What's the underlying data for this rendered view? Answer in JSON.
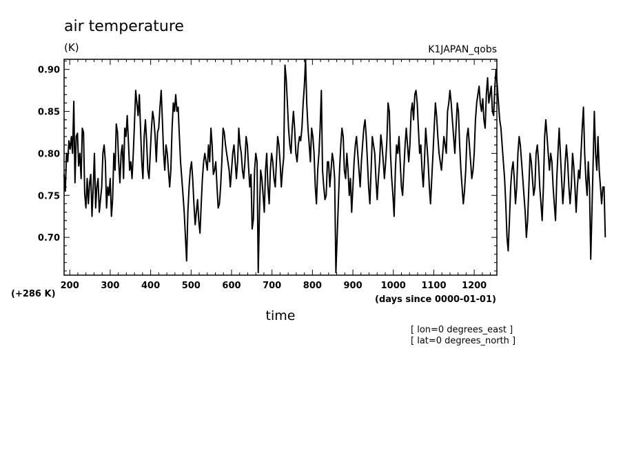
{
  "chart_data": {
    "type": "line",
    "title": "air temperature",
    "units_label": "(K)",
    "dataset_label": "K1JAPAN_qobs",
    "offset_label": "(+286 K)",
    "xlabel": "time",
    "x_units_label": "(days since 0000-01-01)",
    "annotations": [
      "[ lon=0 degrees_east ]",
      "[ lat=0 degrees_north ]"
    ],
    "xlim": [
      186,
      1256
    ],
    "ylim": [
      0.655,
      0.912
    ],
    "x_ticks": [
      200,
      300,
      400,
      500,
      600,
      700,
      800,
      900,
      1000,
      1100,
      1200
    ],
    "x_tick_labels": [
      "200",
      "300",
      "400",
      "500",
      "600",
      "700",
      "800",
      "900",
      "1000",
      "1100",
      "1200"
    ],
    "y_ticks": [
      0.7,
      0.75,
      0.8,
      0.85,
      0.9
    ],
    "y_tick_labels": [
      "0.70",
      "0.75",
      "0.80",
      "0.85",
      "0.90"
    ],
    "grid": false,
    "line_color": "#000000",
    "x_step": 3,
    "values": [
      0.775,
      0.755,
      0.8,
      0.79,
      0.815,
      0.805,
      0.82,
      0.8,
      0.862,
      0.765,
      0.82,
      0.824,
      0.785,
      0.8,
      0.77,
      0.83,
      0.825,
      0.752,
      0.735,
      0.77,
      0.74,
      0.765,
      0.775,
      0.725,
      0.76,
      0.8,
      0.735,
      0.76,
      0.77,
      0.73,
      0.745,
      0.76,
      0.8,
      0.81,
      0.79,
      0.735,
      0.76,
      0.75,
      0.77,
      0.725,
      0.745,
      0.8,
      0.78,
      0.835,
      0.825,
      0.79,
      0.765,
      0.8,
      0.81,
      0.77,
      0.83,
      0.82,
      0.845,
      0.815,
      0.78,
      0.79,
      0.77,
      0.8,
      0.835,
      0.875,
      0.86,
      0.845,
      0.87,
      0.83,
      0.79,
      0.77,
      0.82,
      0.84,
      0.815,
      0.78,
      0.77,
      0.8,
      0.83,
      0.85,
      0.84,
      0.82,
      0.79,
      0.825,
      0.83,
      0.855,
      0.875,
      0.84,
      0.8,
      0.78,
      0.81,
      0.8,
      0.78,
      0.76,
      0.78,
      0.83,
      0.86,
      0.85,
      0.87,
      0.85,
      0.855,
      0.82,
      0.79,
      0.77,
      0.75,
      0.73,
      0.7,
      0.672,
      0.73,
      0.76,
      0.78,
      0.79,
      0.77,
      0.74,
      0.715,
      0.73,
      0.745,
      0.72,
      0.705,
      0.74,
      0.77,
      0.79,
      0.8,
      0.79,
      0.78,
      0.81,
      0.79,
      0.83,
      0.81,
      0.775,
      0.78,
      0.79,
      0.76,
      0.735,
      0.74,
      0.76,
      0.79,
      0.83,
      0.825,
      0.81,
      0.8,
      0.79,
      0.78,
      0.76,
      0.78,
      0.8,
      0.81,
      0.79,
      0.77,
      0.79,
      0.83,
      0.81,
      0.8,
      0.78,
      0.77,
      0.79,
      0.82,
      0.81,
      0.785,
      0.76,
      0.775,
      0.71,
      0.722,
      0.78,
      0.8,
      0.79,
      0.658,
      0.73,
      0.78,
      0.77,
      0.75,
      0.73,
      0.78,
      0.8,
      0.76,
      0.74,
      0.78,
      0.8,
      0.79,
      0.77,
      0.76,
      0.79,
      0.82,
      0.81,
      0.79,
      0.76,
      0.78,
      0.795,
      0.905,
      0.89,
      0.86,
      0.83,
      0.81,
      0.8,
      0.83,
      0.85,
      0.83,
      0.8,
      0.79,
      0.81,
      0.82,
      0.815,
      0.83,
      0.86,
      0.88,
      0.912,
      0.86,
      0.83,
      0.81,
      0.79,
      0.83,
      0.82,
      0.8,
      0.76,
      0.74,
      0.78,
      0.8,
      0.83,
      0.875,
      0.78,
      0.76,
      0.745,
      0.75,
      0.79,
      0.79,
      0.76,
      0.78,
      0.8,
      0.79,
      0.77,
      0.658,
      0.7,
      0.74,
      0.78,
      0.81,
      0.83,
      0.82,
      0.78,
      0.77,
      0.8,
      0.78,
      0.75,
      0.77,
      0.73,
      0.76,
      0.79,
      0.81,
      0.82,
      0.8,
      0.78,
      0.76,
      0.79,
      0.81,
      0.83,
      0.84,
      0.82,
      0.79,
      0.76,
      0.74,
      0.78,
      0.82,
      0.81,
      0.8,
      0.77,
      0.745,
      0.77,
      0.79,
      0.822,
      0.81,
      0.79,
      0.77,
      0.79,
      0.815,
      0.86,
      0.85,
      0.8,
      0.77,
      0.75,
      0.725,
      0.78,
      0.81,
      0.8,
      0.82,
      0.79,
      0.76,
      0.75,
      0.78,
      0.81,
      0.83,
      0.81,
      0.79,
      0.81,
      0.85,
      0.86,
      0.84,
      0.87,
      0.875,
      0.86,
      0.83,
      0.8,
      0.81,
      0.78,
      0.76,
      0.79,
      0.83,
      0.81,
      0.79,
      0.76,
      0.74,
      0.77,
      0.8,
      0.83,
      0.86,
      0.845,
      0.82,
      0.8,
      0.79,
      0.78,
      0.8,
      0.82,
      0.81,
      0.8,
      0.85,
      0.86,
      0.875,
      0.86,
      0.84,
      0.82,
      0.8,
      0.83,
      0.86,
      0.85,
      0.81,
      0.78,
      0.76,
      0.74,
      0.755,
      0.78,
      0.82,
      0.83,
      0.81,
      0.79,
      0.77,
      0.78,
      0.8,
      0.84,
      0.86,
      0.87,
      0.88,
      0.86,
      0.85,
      0.865,
      0.84,
      0.83,
      0.87,
      0.89,
      0.86,
      0.87,
      0.88,
      0.85,
      0.845,
      0.88,
      0.9,
      0.88,
      0.86,
      0.84,
      0.83,
      0.81,
      0.79,
      0.77,
      0.74,
      0.7,
      0.684,
      0.72,
      0.76,
      0.78,
      0.79,
      0.77,
      0.74,
      0.76,
      0.8,
      0.82,
      0.81,
      0.79,
      0.77,
      0.75,
      0.73,
      0.7,
      0.72,
      0.76,
      0.8,
      0.79,
      0.77,
      0.75,
      0.76,
      0.8,
      0.81,
      0.79,
      0.76,
      0.74,
      0.72,
      0.76,
      0.82,
      0.84,
      0.82,
      0.8,
      0.78,
      0.8,
      0.79,
      0.76,
      0.74,
      0.72,
      0.77,
      0.8,
      0.83,
      0.8,
      0.77,
      0.74,
      0.76,
      0.79,
      0.81,
      0.79,
      0.76,
      0.74,
      0.76,
      0.8,
      0.785,
      0.76,
      0.73,
      0.76,
      0.78,
      0.77,
      0.8,
      0.83,
      0.855,
      0.8,
      0.77,
      0.75,
      0.79,
      0.76,
      0.674,
      0.73,
      0.79,
      0.85,
      0.8,
      0.78,
      0.82,
      0.78,
      0.76,
      0.74,
      0.76,
      0.76,
      0.7
    ]
  }
}
